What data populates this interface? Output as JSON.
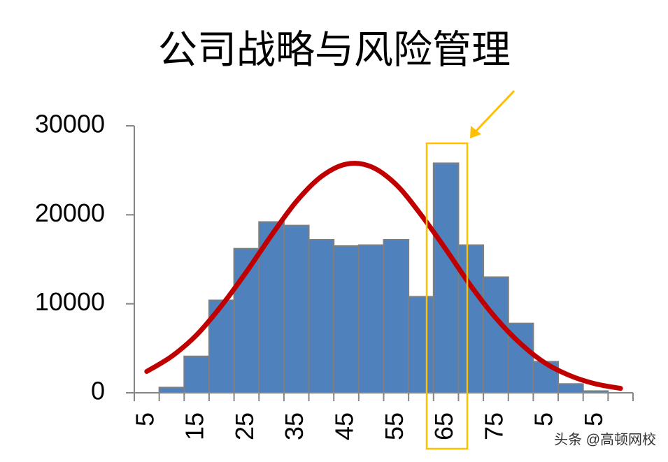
{
  "chart_data": {
    "type": "bar",
    "title": "公司战略与风险管理",
    "categories": [
      5,
      null,
      15,
      null,
      25,
      null,
      35,
      null,
      45,
      null,
      55,
      null,
      65,
      null,
      75,
      null,
      5,
      null,
      5,
      null
    ],
    "series": [
      {
        "type": "bar",
        "color": "#4f81bd",
        "values": [
          0,
          600,
          4100,
          10400,
          16200,
          19200,
          18800,
          17200,
          16500,
          16600,
          17200,
          10800,
          25800,
          16600,
          13000,
          7800,
          3500,
          1000,
          200,
          0
        ]
      },
      {
        "type": "line",
        "color": "#c00000",
        "values": [
          2400,
          4100,
          6500,
          9800,
          13600,
          17700,
          21500,
          24300,
          25700,
          25400,
          23400,
          20000,
          16100,
          12000,
          8400,
          5500,
          3300,
          1900,
          1000,
          500
        ]
      }
    ],
    "ylim": [
      0,
      30000
    ],
    "yticks": [
      0,
      10000,
      20000,
      30000
    ],
    "watermark": "头条 @高顿网校"
  }
}
